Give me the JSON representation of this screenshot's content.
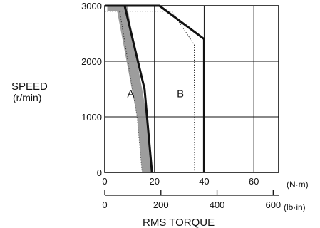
{
  "chart_data": {
    "type": "line",
    "title": "",
    "ylabel_lines": [
      "SPEED",
      "(r/min)"
    ],
    "xlabel": "RMS TORQUE",
    "x_unit_primary": "(N·m)",
    "x_unit_secondary": "(lb·in)",
    "xlim": [
      0,
      70
    ],
    "ylim": [
      0,
      3000
    ],
    "grid": true,
    "x_ticks": [
      "0",
      "20",
      "40",
      "60"
    ],
    "x_tick_values": [
      0,
      20,
      40,
      60
    ],
    "x_secondary_ticks": [
      "0",
      "200",
      "400",
      "600"
    ],
    "x_secondary_tick_values_Nm": [
      0,
      22.6,
      45.2,
      67.8
    ],
    "y_ticks": [
      "0",
      "1000",
      "2000",
      "3000"
    ],
    "y_tick_values": [
      0,
      1000,
      2000,
      3000
    ],
    "regions": [
      {
        "name": "A",
        "label_at": {
          "x": 9,
          "y": 1350
        },
        "boundary_thick": [
          [
            0,
            3000
          ],
          [
            8,
            3000
          ],
          [
            16,
            1500
          ],
          [
            19,
            0
          ]
        ],
        "boundary_dotted_inner": [
          [
            0,
            2900
          ],
          [
            6,
            2900
          ],
          [
            13,
            1000
          ],
          [
            15,
            0
          ]
        ],
        "hatch_band_outer": [
          [
            1,
            3000
          ],
          [
            9,
            3000
          ],
          [
            17,
            1000
          ],
          [
            19,
            0
          ]
        ],
        "hatch_band_inner": [
          [
            1,
            2900
          ],
          [
            5,
            2900
          ],
          [
            13,
            1000
          ],
          [
            15,
            0
          ]
        ],
        "color": "#8c8c8c"
      },
      {
        "name": "B",
        "label_at": {
          "x": 29,
          "y": 1350
        },
        "boundary_thick": [
          [
            0,
            3000
          ],
          [
            22,
            3000
          ],
          [
            40,
            2400
          ],
          [
            40,
            0
          ]
        ],
        "boundary_dotted_inner": [
          [
            0,
            2900
          ],
          [
            27,
            2900
          ],
          [
            36,
            2300
          ],
          [
            36,
            0
          ]
        ]
      }
    ]
  }
}
